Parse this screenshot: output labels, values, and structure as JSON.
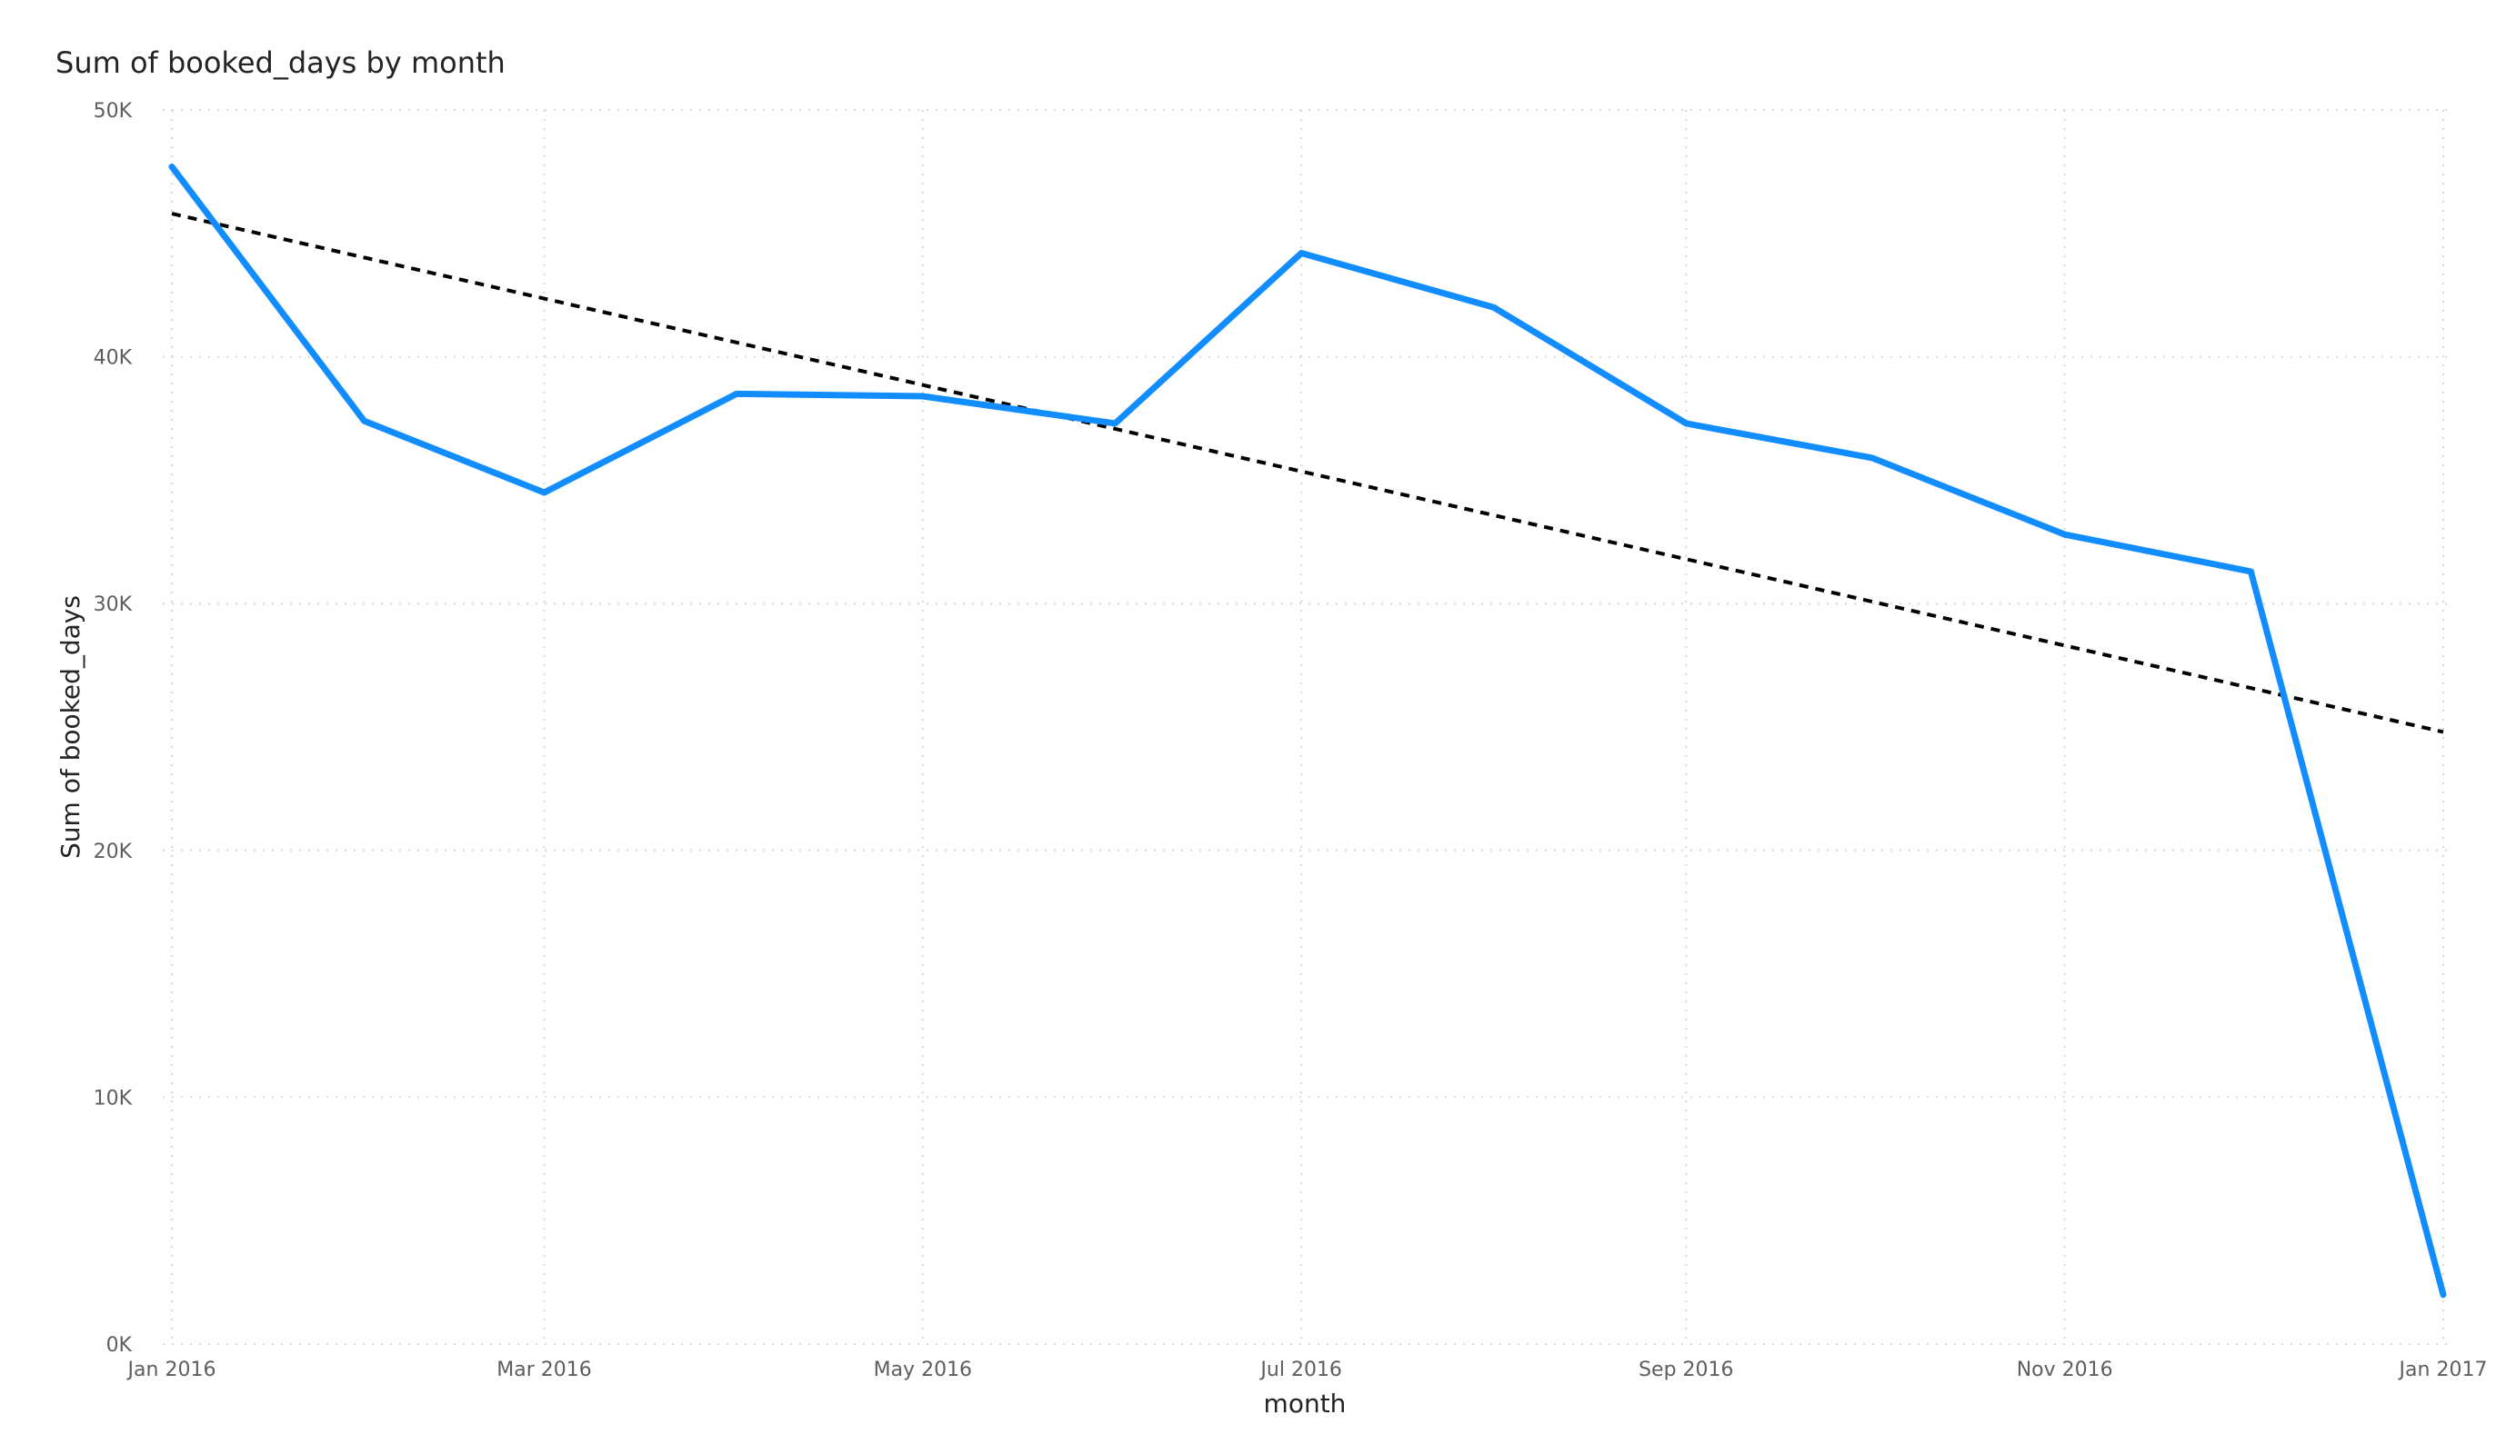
{
  "chart_data": {
    "type": "line",
    "title": "Sum of booked_days by month",
    "xlabel": "month",
    "ylabel": "Sum of booked_days",
    "x_tick_labels": [
      "Jan 2016",
      "Mar 2016",
      "May 2016",
      "Jul 2016",
      "Sep 2016",
      "Nov 2016",
      "Jan 2017"
    ],
    "y_tick_labels": [
      "0K",
      "10K",
      "20K",
      "30K",
      "40K",
      "50K"
    ],
    "ylim": [
      0,
      50000
    ],
    "grid": true,
    "series": [
      {
        "color": "#118dff",
        "x": [
          "2016-01-01",
          "2016-02-01",
          "2016-03-01",
          "2016-04-01",
          "2016-05-01",
          "2016-06-01",
          "2016-07-01",
          "2016-08-01",
          "2016-09-01",
          "2016-10-01",
          "2016-11-01",
          "2016-12-01",
          "2017-01-01"
        ],
        "values": [
          47700,
          37400,
          34500,
          38500,
          38400,
          37300,
          44200,
          42000,
          37300,
          35900,
          32800,
          31300,
          2000
        ]
      }
    ],
    "trend_line": {
      "style": "dashed",
      "color": "#000000",
      "x": [
        "2016-01-01",
        "2017-01-01"
      ],
      "values": [
        45800,
        24800
      ]
    }
  }
}
